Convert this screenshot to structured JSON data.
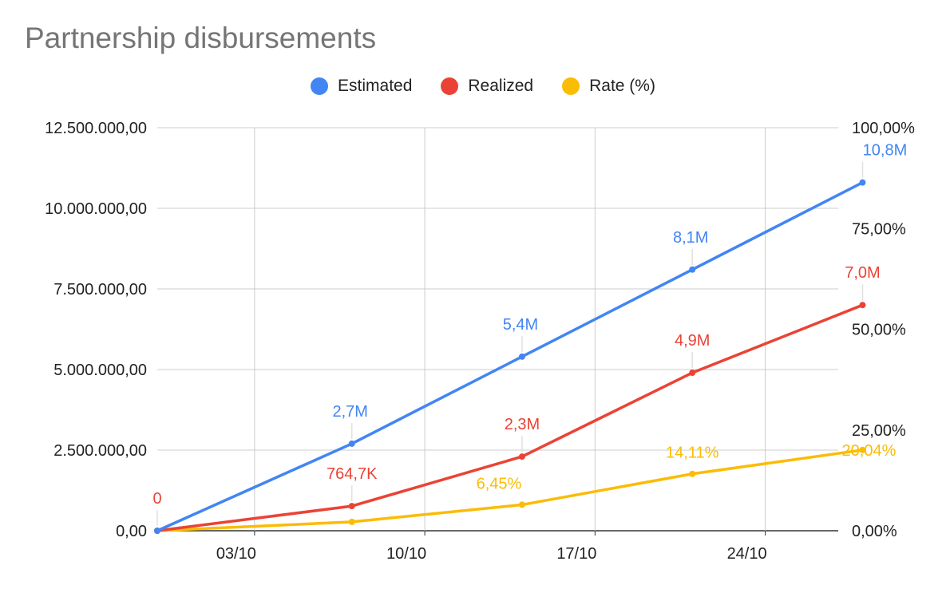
{
  "chart_data": {
    "type": "line",
    "title": "Partnership disbursements",
    "x": [
      "30/09",
      "07/10",
      "14/10",
      "21/10",
      "28/10"
    ],
    "x_ticks": [
      "03/10",
      "10/10",
      "17/10",
      "24/10"
    ],
    "left_axis": {
      "ylim": [
        0,
        12500000
      ],
      "tick_labels": [
        "0,00",
        "2.500.000,00",
        "5.000.000,00",
        "7.500.000,00",
        "10.000.000,00",
        "12.500.000,00"
      ]
    },
    "right_axis": {
      "ylim": [
        0,
        100
      ],
      "tick_labels": [
        "0,00%",
        "25,00%",
        "50,00%",
        "75,00%",
        "100,00%"
      ]
    },
    "grid": true,
    "legend_position": "top",
    "series": [
      {
        "name": "Estimated",
        "axis": "left",
        "color": "#4285f4",
        "values": [
          0,
          2700000,
          5400000,
          8100000,
          10800000
        ],
        "labels": [
          "",
          "2,7M",
          "5,4M",
          "8,1M",
          "10,8M"
        ]
      },
      {
        "name": "Realized",
        "axis": "left",
        "color": "#ea4335",
        "values": [
          0,
          764700,
          2300000,
          4900000,
          7000000
        ],
        "labels": [
          "0",
          "764,7K",
          "2,3M",
          "4,9M",
          "7,0M"
        ]
      },
      {
        "name": "Rate (%)",
        "axis": "right",
        "color": "#fbbc04",
        "values": [
          0,
          2.2,
          6.45,
          14.11,
          20.04
        ],
        "labels": [
          "",
          "",
          "6,45%",
          "14,11%",
          "20,04%"
        ]
      }
    ]
  }
}
